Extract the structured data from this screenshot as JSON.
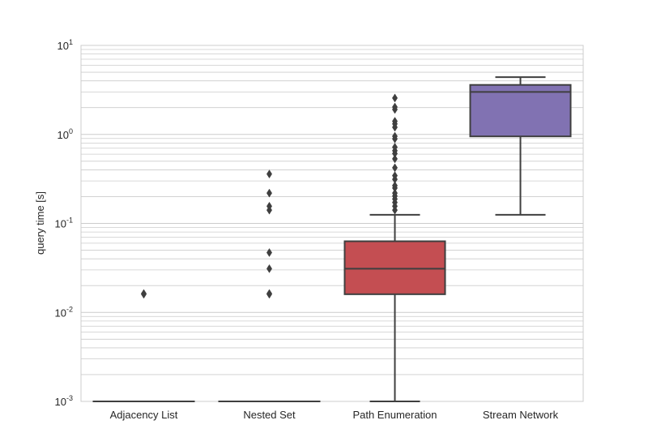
{
  "chart_data": {
    "type": "box",
    "ylabel": "query time [s]",
    "xlabel": "",
    "yscale": "log",
    "ylim": [
      0.001,
      10
    ],
    "grid": true,
    "y_tick_labels": [
      {
        "value": 0.001,
        "base": "10",
        "exp": "-3"
      },
      {
        "value": 0.01,
        "base": "10",
        "exp": "-2"
      },
      {
        "value": 0.1,
        "base": "10",
        "exp": "-1"
      },
      {
        "value": 1,
        "base": "10",
        "exp": "0"
      },
      {
        "value": 10,
        "base": "10",
        "exp": "1"
      }
    ],
    "categories": [
      "Adjacency List",
      "Nested Set",
      "Path Enumeration",
      "Stream Network"
    ],
    "boxes": [
      {
        "category": "Adjacency List",
        "color": "#4c72b0",
        "whisker_low": 0.001,
        "q1": 0.001,
        "median": 0.001,
        "q3": 0.001,
        "whisker_high": 0.001,
        "outliers": [
          0.016,
          0.0163
        ]
      },
      {
        "category": "Nested Set",
        "color": "#55a868",
        "whisker_low": 0.001,
        "q1": 0.001,
        "median": 0.001,
        "q3": 0.001,
        "whisker_high": 0.001,
        "outliers": [
          0.016,
          0.0163,
          0.031,
          0.047,
          0.141,
          0.156,
          0.219,
          0.359
        ]
      },
      {
        "category": "Path Enumeration",
        "color": "#c44e52",
        "whisker_low": 0.001,
        "q1": 0.016,
        "median": 0.031,
        "q3": 0.063,
        "whisker_high": 0.125,
        "outliers": [
          0.141,
          0.156,
          0.172,
          0.188,
          0.203,
          0.219,
          0.25,
          0.266,
          0.313,
          0.344,
          0.422,
          0.531,
          0.609,
          0.656,
          0.719,
          0.891,
          0.953,
          1.203,
          1.313,
          1.406,
          1.906,
          2.031,
          2.563
        ]
      },
      {
        "category": "Stream Network",
        "color": "#8172b2",
        "whisker_low": 0.125,
        "q1": 0.95,
        "median": 3.0,
        "q3": 3.6,
        "whisker_high": 4.4,
        "outliers": []
      }
    ]
  }
}
